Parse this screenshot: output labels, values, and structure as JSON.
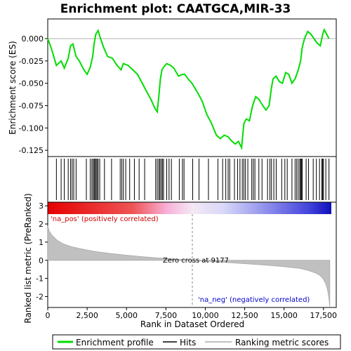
{
  "chart_data": {
    "type": "line",
    "title": "Enrichment plot: CAATGCA,MIR-33",
    "top_panel": {
      "ylabel": "Enrichment score (ES)",
      "ylim": [
        -0.132,
        0.022
      ],
      "yticks": [
        0.0,
        -0.025,
        -0.05,
        -0.075,
        -0.1,
        -0.125
      ],
      "ytick_labels": [
        "0.000",
        "-0.025",
        "-0.050",
        "-0.075",
        "-0.100",
        "-0.125"
      ],
      "series": [
        {
          "name": "Enrichment profile",
          "color": "#00dd00",
          "x": [
            0,
            250,
            550,
            850,
            1050,
            1300,
            1450,
            1600,
            1800,
            2000,
            2300,
            2500,
            2700,
            2850,
            2950,
            3050,
            3200,
            3350,
            3550,
            3800,
            4100,
            4400,
            4650,
            4800,
            5100,
            5400,
            5700,
            6000,
            6300,
            6550,
            6800,
            6950,
            7050,
            7150,
            7250,
            7350,
            7550,
            7800,
            8000,
            8300,
            8550,
            8700,
            8900,
            9150,
            9500,
            9800,
            10100,
            10400,
            10700,
            10950,
            11200,
            11450,
            11700,
            11900,
            12100,
            12300,
            12450,
            12600,
            12800,
            13000,
            13200,
            13400,
            13650,
            13850,
            14050,
            14200,
            14300,
            14500,
            14700,
            14900,
            15100,
            15300,
            15500,
            15700,
            15900,
            16050,
            16150,
            16300,
            16500,
            16700,
            16900,
            17100,
            17300,
            17450,
            17550,
            17700,
            17850
          ],
          "y": [
            0.0,
            -0.012,
            -0.03,
            -0.025,
            -0.033,
            -0.022,
            -0.008,
            -0.006,
            -0.02,
            -0.025,
            -0.035,
            -0.04,
            -0.032,
            -0.02,
            -0.005,
            0.005,
            0.009,
            0.0,
            -0.01,
            -0.02,
            -0.022,
            -0.03,
            -0.035,
            -0.028,
            -0.03,
            -0.035,
            -0.04,
            -0.05,
            -0.06,
            -0.068,
            -0.078,
            -0.082,
            -0.065,
            -0.045,
            -0.035,
            -0.032,
            -0.028,
            -0.03,
            -0.033,
            -0.042,
            -0.04,
            -0.04,
            -0.045,
            -0.05,
            -0.06,
            -0.07,
            -0.085,
            -0.095,
            -0.108,
            -0.112,
            -0.108,
            -0.11,
            -0.115,
            -0.118,
            -0.115,
            -0.122,
            -0.095,
            -0.09,
            -0.092,
            -0.075,
            -0.065,
            -0.068,
            -0.075,
            -0.08,
            -0.075,
            -0.055,
            -0.045,
            -0.042,
            -0.048,
            -0.05,
            -0.038,
            -0.04,
            -0.05,
            -0.045,
            -0.035,
            -0.025,
            -0.01,
            0.0,
            0.008,
            0.005,
            0.0,
            -0.005,
            -0.008,
            0.005,
            0.01,
            0.005,
            0.0
          ]
        }
      ]
    },
    "hits_panel": {
      "legend_label": "Hits",
      "hit_ranks": [
        550,
        850,
        1050,
        1300,
        1450,
        1550,
        1650,
        1800,
        2450,
        2700,
        2800,
        2880,
        2950,
        3000,
        3070,
        3130,
        3200,
        3300,
        3600,
        4050,
        4600,
        4700,
        4800,
        4950,
        5200,
        5500,
        5800,
        6150,
        6850,
        6950,
        7050,
        7120,
        7200,
        7280,
        7350,
        7550,
        7700,
        7850,
        8350,
        8550,
        8650,
        9200,
        9600,
        10200,
        10800,
        11100,
        11300,
        11450,
        11550,
        11850,
        12050,
        12200,
        12350,
        12450,
        12550,
        12700,
        12950,
        13050,
        13150,
        13400,
        13600,
        13950,
        14100,
        14200,
        14350,
        14500,
        14850,
        15050,
        15200,
        15500,
        15700,
        15800,
        15900,
        16000,
        16050,
        16100,
        16150,
        16400,
        16550,
        16850,
        17050,
        17250,
        17400,
        17450,
        17500,
        17650,
        17850
      ]
    },
    "bottom_panel": {
      "ylabel": "Ranked list metric (PreRanked)",
      "xlabel": "Rank in Dataset Ordered",
      "ylim": [
        -2.6,
        3.2
      ],
      "yticks": [
        3,
        2,
        1,
        0,
        -1,
        -2
      ],
      "ytick_labels": [
        "3",
        "2",
        "1",
        "0",
        "-1",
        "-2"
      ],
      "xlim": [
        0,
        18000
      ],
      "xticks": [
        0,
        2500,
        5000,
        7500,
        10000,
        12500,
        15000,
        17500
      ],
      "xtick_labels": [
        "0",
        "2,500",
        "5,000",
        "7,500",
        "10,000",
        "12,500",
        "15,000",
        "17,500"
      ],
      "metric_curve": {
        "name": "Ranking metric scores",
        "color": "#c0c0c0",
        "x": [
          0,
          100,
          300,
          600,
          1000,
          1500,
          2000,
          3000,
          4000,
          5000,
          6000,
          7000,
          8000,
          9177,
          10000,
          11000,
          12000,
          13000,
          14000,
          15000,
          16000,
          16500,
          17000,
          17300,
          17500,
          17650,
          17750,
          17850,
          17900
        ],
        "y": [
          1.9,
          1.6,
          1.35,
          1.1,
          0.9,
          0.75,
          0.65,
          0.48,
          0.37,
          0.28,
          0.2,
          0.13,
          0.07,
          0.0,
          -0.05,
          -0.1,
          -0.16,
          -0.22,
          -0.28,
          -0.35,
          -0.45,
          -0.55,
          -0.7,
          -0.85,
          -1.05,
          -1.3,
          -1.6,
          -2.1,
          -2.55
        ]
      },
      "zero_cross_rank": 9177,
      "zero_cross_label": "Zero cross at 9177",
      "pos_label": "'na_pos' (positively correlated)",
      "neg_label": "'na_neg' (negatively correlated)",
      "pos_color": "#cc0000",
      "neg_color": "#0000cc"
    },
    "legend": {
      "placement": "bottom",
      "entries": [
        {
          "label": "Enrichment profile",
          "color": "#00dd00"
        },
        {
          "label": "Hits",
          "color": "#000000"
        },
        {
          "label": "Ranking metric scores",
          "color": "#c0c0c0"
        }
      ]
    }
  }
}
